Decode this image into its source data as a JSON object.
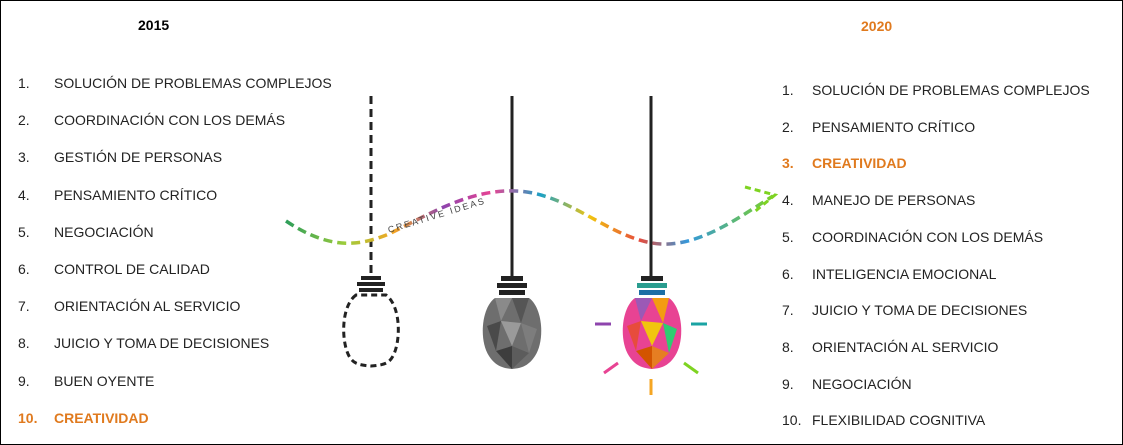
{
  "left": {
    "year": "2015",
    "items": [
      {
        "num": "1.",
        "text": "SOLUCIÓN DE PROBLEMAS COMPLEJOS"
      },
      {
        "num": "2.",
        "text": "COORDINACIÓN CON LOS DEMÁS"
      },
      {
        "num": "3.",
        "text": "GESTIÓN DE PERSONAS"
      },
      {
        "num": "4.",
        "text": "PENSAMIENTO CRÍTICO"
      },
      {
        "num": "5.",
        "text": "NEGOCIACIÓN"
      },
      {
        "num": "6.",
        "text": "CONTROL DE CALIDAD"
      },
      {
        "num": "7.",
        "text": "ORIENTACIÓN AL SERVICIO"
      },
      {
        "num": "8.",
        "text": "JUICIO Y TOMA DE DECISIONES"
      },
      {
        "num": "9.",
        "text": "BUEN OYENTE"
      },
      {
        "num": "10.",
        "text": "CREATIVIDAD",
        "highlight": true
      }
    ]
  },
  "right": {
    "year": "2020",
    "items": [
      {
        "num": "1.",
        "text": "SOLUCIÓN DE PROBLEMAS COMPLEJOS"
      },
      {
        "num": "2.",
        "text": "PENSAMIENTO CRÍTICO"
      },
      {
        "num": "3.",
        "text": "CREATIVIDAD",
        "highlight": true
      },
      {
        "num": "4.",
        "text": "MANEJO DE PERSONAS"
      },
      {
        "num": "5.",
        "text": "COORDINACIÓN CON LOS DEMÁS"
      },
      {
        "num": "6.",
        "text": "INTELIGENCIA EMOCIONAL"
      },
      {
        "num": "7.",
        "text": "JUICIO Y TOMA DE DECISIONES"
      },
      {
        "num": "8.",
        "text": "ORIENTACIÓN AL SERVICIO"
      },
      {
        "num": "9.",
        "text": "NEGOCIACIÓN"
      },
      {
        "num": "10.",
        "text": "FLEXIBILIDAD COGNITIVA"
      }
    ]
  },
  "illustration": {
    "arrow_label": "CREATIVE IDEAS",
    "icons": [
      "outline-bulb-icon",
      "faceted-gray-bulb-icon",
      "colorful-glowing-bulb-icon",
      "wavy-arrow-icon"
    ]
  },
  "colors": {
    "highlight": "#e07a1e",
    "text": "#222222",
    "border": "#000000"
  }
}
